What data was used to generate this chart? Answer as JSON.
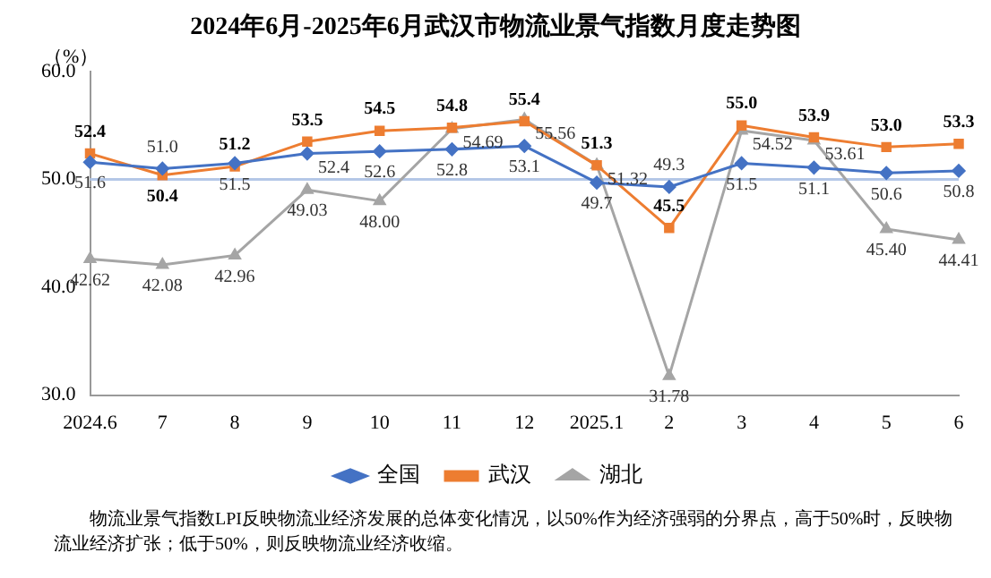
{
  "chart_data": {
    "type": "line",
    "title": "2024年6月-2025年6月武汉市物流业景气指数月度走势图",
    "ylabel": "（%）",
    "categories": [
      "2024.6",
      "7",
      "8",
      "9",
      "10",
      "11",
      "12",
      "2025.1",
      "2",
      "3",
      "4",
      "5",
      "6"
    ],
    "series": [
      {
        "name": "全国",
        "color": "#4472c4",
        "marker": "diamond",
        "values": [
          51.6,
          51.0,
          51.5,
          52.4,
          52.6,
          52.8,
          53.1,
          49.7,
          49.3,
          51.5,
          51.1,
          50.6,
          50.8
        ],
        "value_labels": [
          "51.6",
          "51.0",
          "51.5",
          "52.4",
          "52.6",
          "52.8",
          "53.1",
          "49.7",
          "49.3",
          "51.5",
          "51.1",
          "50.6",
          "50.8"
        ]
      },
      {
        "name": "武汉",
        "color": "#ed7d31",
        "marker": "square",
        "values": [
          52.4,
          50.4,
          51.2,
          53.5,
          54.5,
          54.8,
          55.4,
          51.3,
          45.5,
          55.0,
          53.9,
          53.0,
          53.3
        ],
        "value_labels": [
          "52.4",
          "50.4",
          "51.2",
          "53.5",
          "54.5",
          "54.8",
          "55.4",
          "51.3",
          "45.5",
          "55.0",
          "53.9",
          "53.0",
          "53.3"
        ]
      },
      {
        "name": "湖北",
        "color": "#a5a5a5",
        "marker": "triangle",
        "values": [
          42.62,
          42.08,
          42.96,
          49.03,
          48.0,
          54.69,
          55.56,
          51.32,
          31.78,
          54.52,
          53.61,
          45.4,
          44.41
        ],
        "value_labels": [
          "42.62",
          "42.08",
          "42.96",
          "49.03",
          "48.00",
          "54.69",
          "55.56",
          "51.32",
          "31.78",
          "54.52",
          "53.61",
          "45.40",
          "44.41"
        ]
      }
    ],
    "ylim": [
      30,
      60
    ],
    "yticks": [
      {
        "value": 30,
        "label": "30.0"
      },
      {
        "value": 40,
        "label": "40.0"
      },
      {
        "value": 50,
        "label": "50.0"
      },
      {
        "value": 60,
        "label": "60.0"
      }
    ],
    "ref_lines": [
      {
        "axis": "y",
        "value": 50,
        "color": "#b4c7e7"
      }
    ],
    "grid": false,
    "legend": "bottom",
    "line_style": "solid",
    "annotations": [
      "物流业景气指数LPI反映物流业经济发展的总体变化情况，以50%作为经济强弱的分界点，高于50%时，反映物流业经济扩张；低于50%，则反映物流业经济收缩。"
    ]
  }
}
